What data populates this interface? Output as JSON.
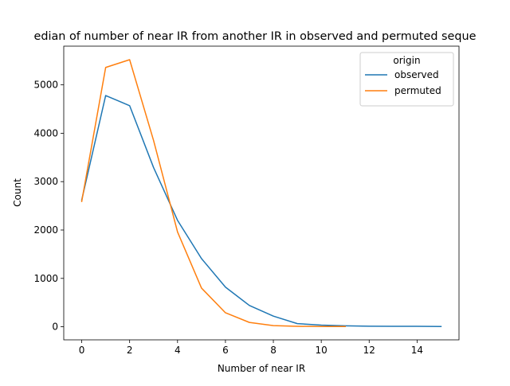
{
  "chart_data": {
    "type": "line",
    "title": "edian of number of near IR from another IR in observed and permuted seque",
    "xlabel": "Number of near IR",
    "ylabel": "Count",
    "xlim": [
      -0.75,
      15.75
    ],
    "ylim": [
      -270,
      5800
    ],
    "xticks": [
      0,
      2,
      4,
      6,
      8,
      10,
      12,
      14
    ],
    "yticks": [
      0,
      1000,
      2000,
      3000,
      4000,
      5000
    ],
    "grid": false,
    "legend": {
      "title": "origin",
      "placement": "top-right"
    },
    "series": [
      {
        "name": "observed",
        "color": "#1f77b4",
        "x": [
          0,
          1,
          2,
          3,
          4,
          5,
          6,
          7,
          8,
          9,
          10,
          11,
          12,
          13,
          14,
          15
        ],
        "y": [
          2620,
          4780,
          4570,
          3290,
          2200,
          1410,
          820,
          440,
          220,
          65,
          35,
          20,
          12,
          10,
          10,
          5
        ]
      },
      {
        "name": "permuted",
        "color": "#ff7f0e",
        "x": [
          0,
          1,
          2,
          3,
          4,
          5,
          6,
          7,
          8,
          9,
          10,
          11
        ],
        "y": [
          2590,
          5360,
          5520,
          3850,
          1960,
          800,
          290,
          90,
          25,
          10,
          5,
          5
        ]
      }
    ]
  }
}
